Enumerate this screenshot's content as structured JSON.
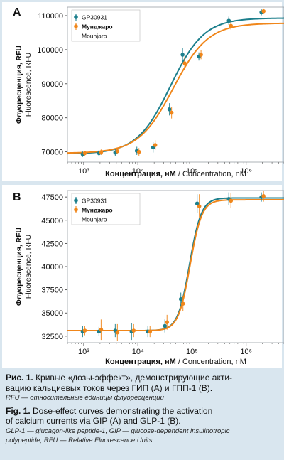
{
  "chart_data": [
    {
      "panel_label": "A",
      "type": "scatter",
      "x_scale": "log",
      "xlim": [
        500,
        5000000
      ],
      "ylim": [
        67000,
        112500
      ],
      "x_ticks": [
        {
          "value": 1000,
          "label": "10³"
        },
        {
          "value": 10000,
          "label": "10⁴"
        },
        {
          "value": 100000,
          "label": "10⁵"
        },
        {
          "value": 1000000,
          "label": "10⁶"
        }
      ],
      "y_ticks": [
        70000,
        80000,
        90000,
        100000,
        110000
      ],
      "ylabel": [
        "Флуоресценция, RFU",
        "Fluorescence, RFU"
      ],
      "xlabel": {
        "ru": "Концентрация, нМ",
        "en": " / Concentration, nM"
      },
      "legend": [
        "GP30931",
        "Мунджаро",
        "Mounjaro"
      ],
      "series": [
        {
          "name": "GP30931",
          "color": "#1c7f8c",
          "x": [
            1000,
            2000,
            4000,
            10000,
            20000,
            40000,
            70000,
            140000,
            500000,
            2000000
          ],
          "y": [
            69300,
            69600,
            69800,
            70300,
            71300,
            82500,
            98500,
            98000,
            108500,
            111000
          ],
          "err": [
            800,
            900,
            1000,
            1200,
            1500,
            1800,
            2000,
            1200,
            1200,
            900
          ],
          "curve": {
            "bottom": 69400,
            "top": 109300,
            "ec50": 40000,
            "hill": 1.4
          }
        },
        {
          "name": "Мунджаро",
          "color": "#f0861a",
          "x": [
            1000,
            2000,
            4000,
            10000,
            20000,
            40000,
            70000,
            140000,
            500000,
            2000000
          ],
          "y": [
            69600,
            69900,
            70200,
            70000,
            72000,
            81500,
            96000,
            98500,
            107000,
            111300
          ],
          "err": [
            700,
            800,
            900,
            1100,
            1400,
            1700,
            2000,
            1300,
            1100,
            800
          ],
          "curve": {
            "bottom": 69600,
            "top": 107800,
            "ec50": 45000,
            "hill": 1.35
          }
        }
      ]
    },
    {
      "panel_label": "B",
      "type": "scatter",
      "x_scale": "log",
      "xlim": [
        500,
        5000000
      ],
      "ylim": [
        31800,
        48200
      ],
      "x_ticks": [
        {
          "value": 1000,
          "label": "10³"
        },
        {
          "value": 10000,
          "label": "10⁴"
        },
        {
          "value": 100000,
          "label": "10⁵"
        },
        {
          "value": 1000000,
          "label": "10⁶"
        }
      ],
      "y_ticks": [
        32500,
        35000,
        37500,
        40000,
        42500,
        45000,
        47500
      ],
      "ylabel": [
        "Флуоресценция, RFU",
        "Fluorescence, RFU"
      ],
      "xlabel": {
        "ru": "Концентрация, нМ",
        "en": " / Concentration, nM"
      },
      "legend": [
        "GP30931",
        "Мунджаро",
        "Mounjaro"
      ],
      "series": [
        {
          "name": "GP30931",
          "color": "#1c7f8c",
          "x": [
            1000,
            2000,
            4000,
            8000,
            16000,
            33000,
            65000,
            130000,
            500000,
            2000000
          ],
          "y": [
            33000,
            33000,
            33100,
            33000,
            33000,
            33600,
            36500,
            46800,
            47300,
            47500
          ],
          "err": [
            600,
            500,
            700,
            900,
            600,
            700,
            700,
            1000,
            700,
            500
          ],
          "curve": {
            "bottom": 33100,
            "top": 47400,
            "ec50": 90000,
            "hill": 4.0
          }
        },
        {
          "name": "Мунджаро",
          "color": "#f0861a",
          "x": [
            1000,
            2000,
            4000,
            8000,
            16000,
            33000,
            65000,
            130000,
            500000,
            2000000
          ],
          "y": [
            33100,
            33200,
            32900,
            33100,
            33000,
            34000,
            36000,
            46500,
            47100,
            47600
          ],
          "err": [
            500,
            1100,
            900,
            700,
            600,
            800,
            800,
            1300,
            800,
            600
          ],
          "curve": {
            "bottom": 33100,
            "top": 47200,
            "ec50": 92000,
            "hill": 4.0
          }
        }
      ]
    }
  ],
  "caption": {
    "ru_title": "Рис. 1.",
    "ru_text_1": " Кривые «дозы-эффект», демонстрирующие акти-",
    "ru_text_2": "вацию кальциевых токов через ГИП (А) и ГПП-1 (В).",
    "ru_note": "RFU — относительные единицы флуоресценции",
    "en_title": "Fig. 1.",
    "en_text_1": " Dose-effect curves demonstrating the activation",
    "en_text_2": "of calcium currents via GIP (A) and GLP-1 (B).",
    "en_note_1": "GLP-1 — glucagon-like peptide-1,  GIP — glucose-dependent insulinotropic",
    "en_note_2": "polypeptide, RFU — Relative Fluorescence Units"
  }
}
